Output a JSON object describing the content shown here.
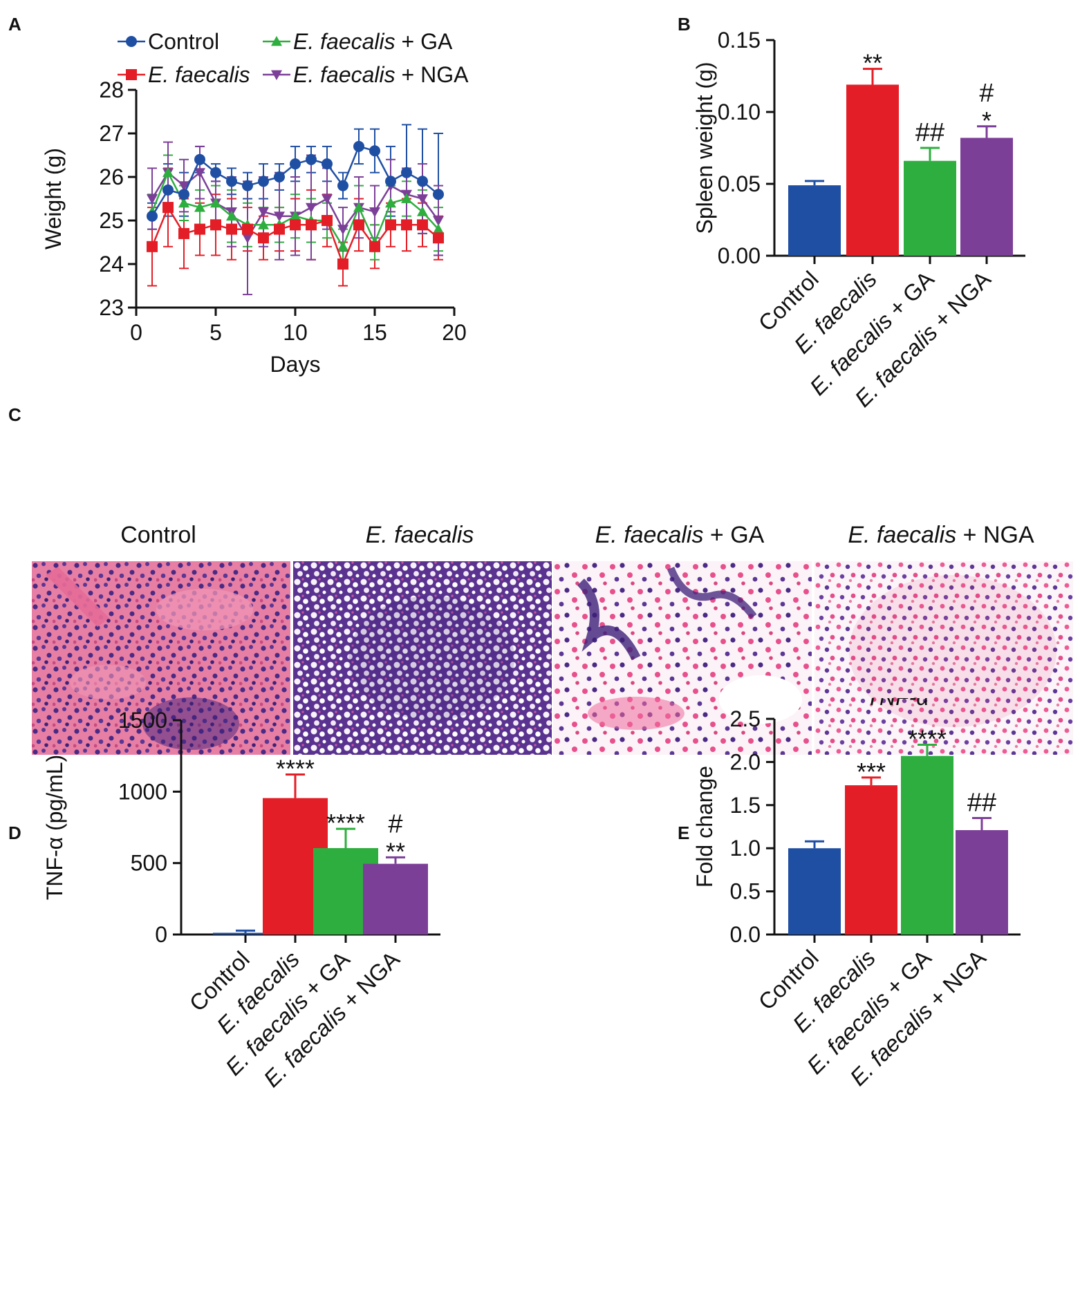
{
  "panel_letters": {
    "a": "A",
    "b": "B",
    "c": "C",
    "d": "D",
    "e": "E"
  },
  "colors": {
    "control": "#1f4fa3",
    "ef": "#e41e26",
    "ga": "#2eae3f",
    "nga": "#7c3f98",
    "axis": "#111111"
  },
  "histology": {
    "titles": [
      {
        "italic": "",
        "plain": "Control"
      },
      {
        "italic": "E. faecalis",
        "plain": ""
      },
      {
        "italic": "E. faecalis",
        "plain": " + GA"
      },
      {
        "italic": "E. faecalis",
        "plain": " + NGA"
      }
    ]
  },
  "chart_data": [
    {
      "panel": "A",
      "type": "line",
      "title": "",
      "xlabel": "Days",
      "ylabel": "Weight (g)",
      "xlim": [
        0,
        20
      ],
      "ylim": [
        23,
        28
      ],
      "xticks": [
        "0",
        "5",
        "10",
        "15",
        "20"
      ],
      "yticks": [
        "23",
        "24",
        "25",
        "26",
        "27",
        "28"
      ],
      "legend": [
        {
          "italic": "",
          "plain": "Control"
        },
        {
          "italic": "E. faecalis",
          "plain": " + GA"
        },
        {
          "italic": "E. faecalis",
          "plain": ""
        },
        {
          "italic": "E. faecalis",
          "plain": " + NGA"
        }
      ],
      "legend_position": "top",
      "x": [
        1,
        2,
        3,
        4,
        5,
        6,
        7,
        8,
        9,
        10,
        11,
        12,
        13,
        14,
        15,
        16,
        17,
        18,
        19
      ],
      "series": [
        {
          "name": "Control",
          "color": "#1f4fa3",
          "marker": "circle",
          "values": [
            25.1,
            25.7,
            25.6,
            26.4,
            26.1,
            25.9,
            25.8,
            25.9,
            26.0,
            26.3,
            26.4,
            26.3,
            25.8,
            26.7,
            26.6,
            25.9,
            26.1,
            25.9,
            25.6
          ],
          "errors": [
            0.3,
            0.6,
            0.5,
            0.3,
            0.2,
            0.3,
            0.3,
            0.4,
            0.3,
            0.4,
            0.3,
            0.4,
            0.3,
            0.4,
            0.5,
            0.8,
            1.1,
            1.2,
            1.4
          ]
        },
        {
          "name": "E. faecalis",
          "color": "#e41e26",
          "marker": "square",
          "values": [
            24.4,
            25.3,
            24.7,
            24.8,
            24.9,
            24.8,
            24.8,
            24.6,
            24.8,
            24.9,
            24.9,
            25.0,
            24.0,
            24.9,
            24.4,
            24.9,
            24.9,
            24.9,
            24.6
          ],
          "errors": [
            0.9,
            0.9,
            0.8,
            0.6,
            0.7,
            0.7,
            0.5,
            0.5,
            0.5,
            0.6,
            0.8,
            0.6,
            0.5,
            0.6,
            0.5,
            0.5,
            0.6,
            0.5,
            0.5
          ]
        },
        {
          "name": "E. faecalis + GA",
          "color": "#2eae3f",
          "marker": "triangle-up",
          "values": [
            25.2,
            26.1,
            25.4,
            25.3,
            25.4,
            25.1,
            24.9,
            24.9,
            24.9,
            25.1,
            25.0,
            25.0,
            24.4,
            25.3,
            24.5,
            25.4,
            25.5,
            25.2,
            24.8
          ],
          "errors": [
            0.4,
            0.4,
            0.4,
            0.4,
            0.4,
            0.6,
            0.5,
            0.4,
            0.4,
            0.5,
            0.5,
            0.4,
            0.4,
            0.5,
            0.4,
            0.4,
            0.4,
            0.5,
            0.5
          ]
        },
        {
          "name": "E. faecalis + NGA",
          "color": "#7c3f98",
          "marker": "triangle-down",
          "values": [
            25.5,
            26.1,
            25.8,
            26.1,
            25.4,
            25.2,
            24.6,
            25.2,
            25.1,
            25.1,
            25.3,
            25.5,
            24.8,
            25.3,
            25.2,
            25.8,
            25.6,
            25.5,
            25.0
          ],
          "errors": [
            0.7,
            0.7,
            0.6,
            0.6,
            0.5,
            0.8,
            1.3,
            0.8,
            1.0,
            0.9,
            1.2,
            0.7,
            0.5,
            0.7,
            0.6,
            0.6,
            0.6,
            0.8,
            0.8
          ]
        }
      ]
    },
    {
      "panel": "B",
      "type": "bar",
      "title": "",
      "xlabel": "",
      "ylabel": "Spleen weight (g)",
      "ylim": [
        0,
        0.15
      ],
      "yticks": [
        "0.00",
        "0.05",
        "0.10",
        "0.15"
      ],
      "categories": [
        {
          "italic": "",
          "plain": "Control"
        },
        {
          "italic": "E. faecalis",
          "plain": ""
        },
        {
          "italic": "E. faecalis",
          "plain": " + GA"
        },
        {
          "italic": "E. faecalis",
          "plain": " + NGA"
        }
      ],
      "values": [
        0.049,
        0.119,
        0.066,
        0.082
      ],
      "errors": [
        0.003,
        0.011,
        0.009,
        0.008
      ],
      "colors": [
        "#1f4fa3",
        "#e41e26",
        "#2eae3f",
        "#7c3f98"
      ],
      "annotations": [
        [],
        [
          "**"
        ],
        [
          "##"
        ],
        [
          "*",
          "#"
        ]
      ]
    },
    {
      "panel": "D",
      "type": "bar",
      "title": "",
      "xlabel": "",
      "ylabel": "TNF-α (pg/mL)",
      "ylim": [
        0,
        1500
      ],
      "yticks": [
        "0",
        "500",
        "1000",
        "1500"
      ],
      "categories": [
        {
          "italic": "",
          "plain": "Control"
        },
        {
          "italic": "E. faecalis",
          "plain": ""
        },
        {
          "italic": "E. faecalis",
          "plain": " + GA"
        },
        {
          "italic": "E. faecalis",
          "plain": " + NGA"
        }
      ],
      "values": [
        12,
        955,
        605,
        495
      ],
      "errors": [
        15,
        165,
        135,
        45
      ],
      "colors": [
        "#1f4fa3",
        "#e41e26",
        "#2eae3f",
        "#7c3f98"
      ],
      "annotations": [
        [],
        [
          "****"
        ],
        [
          "****"
        ],
        [
          "**",
          "#"
        ]
      ]
    },
    {
      "panel": "E",
      "type": "bar",
      "title": "TNF-α",
      "xlabel": "",
      "ylabel": "Fold change",
      "ylim": [
        0,
        2.5
      ],
      "yticks": [
        "0.0",
        "0.5",
        "1.0",
        "1.5",
        "2.0",
        "2.5"
      ],
      "categories": [
        {
          "italic": "",
          "plain": "Control"
        },
        {
          "italic": "E. faecalis",
          "plain": ""
        },
        {
          "italic": "E. faecalis",
          "plain": " + GA"
        },
        {
          "italic": "E. faecalis",
          "plain": " + NGA"
        }
      ],
      "values": [
        1.0,
        1.73,
        2.07,
        1.21
      ],
      "errors": [
        0.08,
        0.09,
        0.13,
        0.14
      ],
      "colors": [
        "#1f4fa3",
        "#e41e26",
        "#2eae3f",
        "#7c3f98"
      ],
      "annotations": [
        [],
        [
          "***"
        ],
        [
          "****"
        ],
        [
          "##"
        ]
      ]
    }
  ]
}
